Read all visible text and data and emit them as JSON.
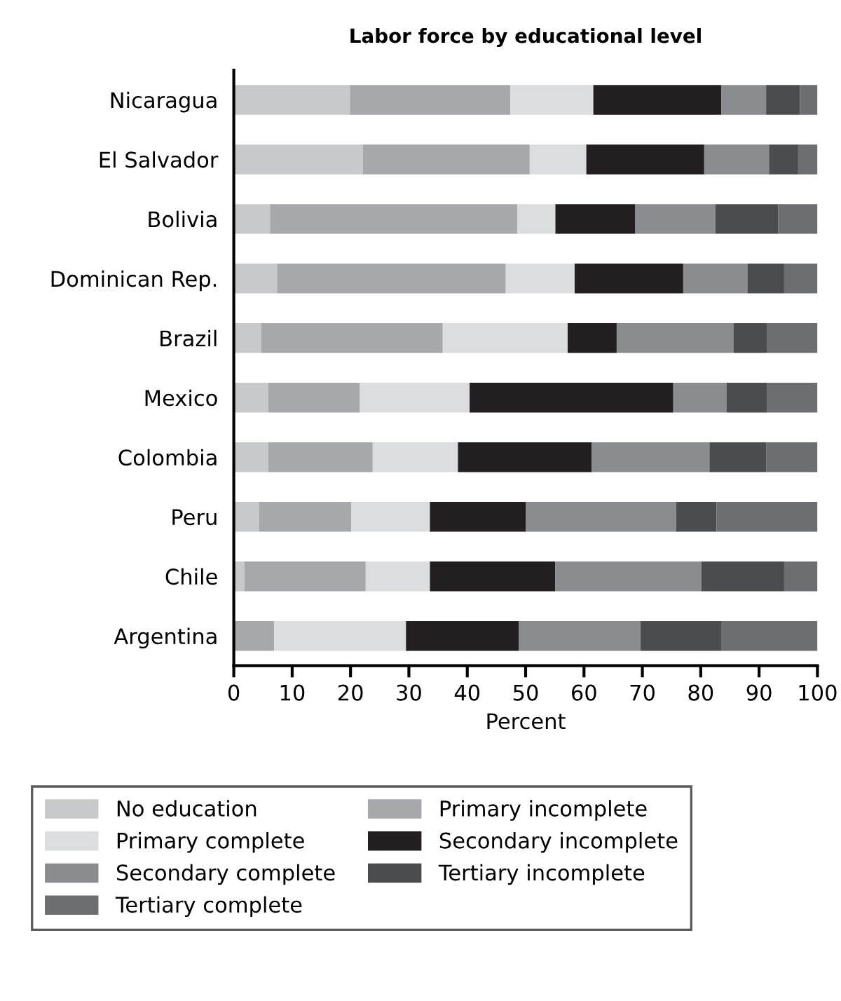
{
  "chart_data": {
    "type": "bar",
    "orientation": "horizontal",
    "stacked": true,
    "title": "Labor force by educational level",
    "xlabel": "Percent",
    "categories": [
      "Nicaragua",
      "El Salvador",
      "Bolivia",
      "Dominican Rep.",
      "Brazil",
      "Mexico",
      "Colombia",
      "Peru",
      "Chile",
      "Argentina"
    ],
    "series": [
      {
        "name": "No education",
        "color": "#c8c9cb",
        "values": [
          19.9,
          22.1,
          6.2,
          7.4,
          4.7,
          5.9,
          5.9,
          4.3,
          1.8,
          0
        ]
      },
      {
        "name": "Primary incomplete",
        "color": "#a7a8ab",
        "values": [
          27.5,
          28.6,
          42.4,
          39.2,
          31.1,
          15.7,
          17.9,
          15.8,
          20.8,
          6.9
        ]
      },
      {
        "name": "Primary complete",
        "color": "#dcdddf",
        "values": [
          14.2,
          9.7,
          6.5,
          11.8,
          21.4,
          18.8,
          14.6,
          13.5,
          11.0,
          22.6
        ]
      },
      {
        "name": "Secondary incomplete",
        "color": "#231f20",
        "values": [
          21.9,
          20.2,
          13.7,
          18.6,
          8.4,
          34.9,
          22.9,
          16.4,
          21.5,
          19.3
        ]
      },
      {
        "name": "Secondary complete",
        "color": "#8b8c8f",
        "values": [
          7.7,
          11.1,
          13.7,
          11.0,
          20.0,
          9.1,
          20.2,
          25.8,
          25.0,
          20.9
        ]
      },
      {
        "name": "Tertiary incomplete",
        "color": "#4b4c4e",
        "values": [
          5.8,
          5.0,
          10.8,
          6.3,
          5.8,
          7.0,
          9.7,
          6.9,
          14.2,
          13.8
        ]
      },
      {
        "name": "Tertiary complete",
        "color": "#6d6e71",
        "values": [
          3.0,
          3.3,
          6.7,
          5.7,
          8.6,
          8.6,
          8.8,
          17.3,
          5.7,
          16.5
        ]
      }
    ],
    "xlim": [
      0,
      100
    ],
    "xticks": [
      0,
      10,
      20,
      30,
      40,
      50,
      60,
      70,
      80,
      90,
      100
    ],
    "legend": "bottom"
  }
}
